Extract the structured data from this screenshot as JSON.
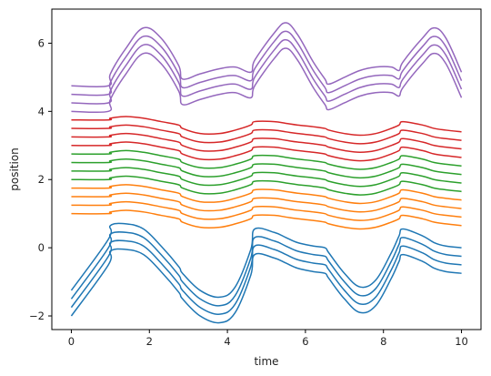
{
  "chart_data": {
    "type": "line",
    "title": "",
    "xlabel": "time",
    "ylabel": "position",
    "xlim": [
      -0.5,
      10.5
    ],
    "ylim": [
      -2.4,
      7.0
    ],
    "xticks": [
      0,
      2,
      4,
      6,
      8,
      10
    ],
    "xtick_labels": [
      "0",
      "2",
      "4",
      "6",
      "8",
      "10"
    ],
    "yticks": [
      -2,
      0,
      2,
      4,
      6
    ],
    "ytick_labels": [
      "−2",
      "0",
      "2",
      "4",
      "6"
    ],
    "grid": false,
    "legend": "none",
    "colors": {
      "blue": "#1f77b4",
      "orange": "#ff7f0e",
      "green": "#2ca02c",
      "red": "#d62728",
      "purple": "#9467bd",
      "axis": "#000000",
      "text": "#222222"
    },
    "x": [
      0,
      0.95,
      1.0,
      1.4,
      1.85,
      2.3,
      2.75,
      2.85,
      3.3,
      3.8,
      4.2,
      4.6,
      4.7,
      5.2,
      5.5,
      5.8,
      6.2,
      6.5,
      6.6,
      7.0,
      7.4,
      7.8,
      8.2,
      8.4,
      8.5,
      9.0,
      9.3,
      9.6,
      10.0
    ],
    "series": [
      {
        "group": "blue",
        "values": [
          -2.0,
          -0.5,
          -0.1,
          -0.05,
          -0.2,
          -0.7,
          -1.3,
          -1.5,
          -2.0,
          -2.2,
          -1.9,
          -0.8,
          -0.2,
          -0.3,
          -0.45,
          -0.6,
          -0.7,
          -0.75,
          -0.9,
          -1.5,
          -1.9,
          -1.7,
          -0.9,
          -0.4,
          -0.2,
          -0.4,
          -0.6,
          -0.7,
          -0.75
        ]
      },
      {
        "group": "blue",
        "values": [
          -1.75,
          -0.25,
          0.15,
          0.2,
          0.05,
          -0.45,
          -1.05,
          -1.25,
          -1.75,
          -1.95,
          -1.65,
          -0.55,
          0.05,
          -0.05,
          -0.2,
          -0.35,
          -0.45,
          -0.5,
          -0.65,
          -1.25,
          -1.65,
          -1.45,
          -0.65,
          -0.15,
          0.05,
          -0.15,
          -0.35,
          -0.45,
          -0.5
        ]
      },
      {
        "group": "blue",
        "values": [
          -1.5,
          0.0,
          0.4,
          0.45,
          0.3,
          -0.2,
          -0.8,
          -1.0,
          -1.5,
          -1.7,
          -1.4,
          -0.3,
          0.3,
          0.2,
          0.05,
          -0.1,
          -0.2,
          -0.25,
          -0.4,
          -1.0,
          -1.4,
          -1.2,
          -0.4,
          0.1,
          0.3,
          0.1,
          -0.1,
          -0.2,
          -0.25
        ]
      },
      {
        "group": "blue",
        "values": [
          -1.25,
          0.25,
          0.65,
          0.7,
          0.55,
          0.05,
          -0.55,
          -0.75,
          -1.25,
          -1.45,
          -1.15,
          -0.05,
          0.55,
          0.45,
          0.3,
          0.15,
          0.05,
          0.0,
          -0.15,
          -0.75,
          -1.15,
          -0.95,
          -0.15,
          0.35,
          0.55,
          0.35,
          0.15,
          0.05,
          0.0
        ]
      },
      {
        "group": "orange",
        "values": [
          1.0,
          1.0,
          1.05,
          1.1,
          1.05,
          0.95,
          0.85,
          0.75,
          0.6,
          0.6,
          0.7,
          0.85,
          0.95,
          0.95,
          0.9,
          0.85,
          0.8,
          0.75,
          0.7,
          0.6,
          0.55,
          0.6,
          0.75,
          0.85,
          0.95,
          0.85,
          0.75,
          0.7,
          0.65
        ]
      },
      {
        "group": "orange",
        "values": [
          1.25,
          1.25,
          1.3,
          1.35,
          1.3,
          1.2,
          1.1,
          1.0,
          0.85,
          0.85,
          0.95,
          1.1,
          1.2,
          1.2,
          1.15,
          1.1,
          1.05,
          1.0,
          0.95,
          0.85,
          0.8,
          0.85,
          1.0,
          1.1,
          1.2,
          1.1,
          1.0,
          0.95,
          0.9
        ]
      },
      {
        "group": "orange",
        "values": [
          1.5,
          1.5,
          1.55,
          1.6,
          1.55,
          1.45,
          1.35,
          1.25,
          1.1,
          1.1,
          1.2,
          1.35,
          1.45,
          1.45,
          1.4,
          1.35,
          1.3,
          1.25,
          1.2,
          1.1,
          1.05,
          1.1,
          1.25,
          1.35,
          1.45,
          1.35,
          1.25,
          1.2,
          1.15
        ]
      },
      {
        "group": "orange",
        "values": [
          1.75,
          1.75,
          1.8,
          1.85,
          1.8,
          1.7,
          1.6,
          1.5,
          1.35,
          1.35,
          1.45,
          1.6,
          1.7,
          1.7,
          1.65,
          1.6,
          1.55,
          1.5,
          1.45,
          1.35,
          1.3,
          1.35,
          1.5,
          1.6,
          1.7,
          1.6,
          1.5,
          1.45,
          1.4
        ]
      },
      {
        "group": "green",
        "values": [
          2.0,
          2.0,
          2.05,
          2.1,
          2.05,
          1.95,
          1.85,
          1.75,
          1.6,
          1.6,
          1.7,
          1.85,
          1.95,
          1.95,
          1.9,
          1.85,
          1.8,
          1.75,
          1.7,
          1.6,
          1.55,
          1.6,
          1.75,
          1.85,
          1.95,
          1.85,
          1.75,
          1.7,
          1.65
        ]
      },
      {
        "group": "green",
        "values": [
          2.25,
          2.25,
          2.3,
          2.35,
          2.3,
          2.2,
          2.1,
          2.0,
          1.85,
          1.85,
          1.95,
          2.1,
          2.2,
          2.2,
          2.15,
          2.1,
          2.05,
          2.0,
          1.95,
          1.85,
          1.8,
          1.85,
          2.0,
          2.1,
          2.2,
          2.1,
          2.0,
          1.95,
          1.9
        ]
      },
      {
        "group": "green",
        "values": [
          2.5,
          2.5,
          2.55,
          2.6,
          2.55,
          2.45,
          2.35,
          2.25,
          2.1,
          2.1,
          2.2,
          2.35,
          2.45,
          2.45,
          2.4,
          2.35,
          2.3,
          2.25,
          2.2,
          2.1,
          2.05,
          2.1,
          2.25,
          2.35,
          2.45,
          2.35,
          2.25,
          2.2,
          2.15
        ]
      },
      {
        "group": "green",
        "values": [
          2.75,
          2.75,
          2.8,
          2.85,
          2.8,
          2.7,
          2.6,
          2.5,
          2.35,
          2.35,
          2.45,
          2.6,
          2.7,
          2.7,
          2.65,
          2.6,
          2.55,
          2.5,
          2.45,
          2.35,
          2.3,
          2.35,
          2.5,
          2.6,
          2.7,
          2.6,
          2.5,
          2.45,
          2.4
        ]
      },
      {
        "group": "red",
        "values": [
          3.0,
          3.0,
          3.05,
          3.1,
          3.05,
          2.95,
          2.85,
          2.75,
          2.6,
          2.6,
          2.7,
          2.85,
          2.95,
          2.95,
          2.9,
          2.85,
          2.8,
          2.75,
          2.7,
          2.6,
          2.55,
          2.6,
          2.75,
          2.85,
          2.95,
          2.85,
          2.75,
          2.7,
          2.65
        ]
      },
      {
        "group": "red",
        "values": [
          3.25,
          3.25,
          3.3,
          3.35,
          3.3,
          3.2,
          3.1,
          3.0,
          2.85,
          2.85,
          2.95,
          3.1,
          3.2,
          3.2,
          3.15,
          3.1,
          3.05,
          3.0,
          2.95,
          2.85,
          2.8,
          2.85,
          3.0,
          3.1,
          3.2,
          3.1,
          3.0,
          2.95,
          2.9
        ]
      },
      {
        "group": "red",
        "values": [
          3.5,
          3.5,
          3.55,
          3.6,
          3.55,
          3.45,
          3.35,
          3.25,
          3.1,
          3.1,
          3.2,
          3.35,
          3.45,
          3.45,
          3.4,
          3.35,
          3.3,
          3.25,
          3.2,
          3.1,
          3.05,
          3.1,
          3.25,
          3.35,
          3.45,
          3.35,
          3.25,
          3.2,
          3.15
        ]
      },
      {
        "group": "red",
        "values": [
          3.75,
          3.75,
          3.8,
          3.85,
          3.8,
          3.7,
          3.6,
          3.5,
          3.35,
          3.35,
          3.45,
          3.6,
          3.7,
          3.7,
          3.65,
          3.6,
          3.55,
          3.5,
          3.45,
          3.35,
          3.3,
          3.35,
          3.5,
          3.6,
          3.7,
          3.6,
          3.5,
          3.45,
          3.4
        ]
      },
      {
        "group": "purple",
        "values": [
          4.0,
          4.0,
          4.35,
          5.1,
          5.7,
          5.4,
          4.6,
          4.2,
          4.35,
          4.5,
          4.55,
          4.4,
          4.75,
          5.55,
          5.85,
          5.5,
          4.7,
          4.2,
          4.05,
          4.25,
          4.45,
          4.55,
          4.55,
          4.45,
          4.7,
          5.4,
          5.7,
          5.4,
          4.4
        ]
      },
      {
        "group": "purple",
        "values": [
          4.25,
          4.25,
          4.6,
          5.35,
          5.95,
          5.65,
          4.85,
          4.45,
          4.6,
          4.75,
          4.8,
          4.65,
          5.0,
          5.8,
          6.1,
          5.75,
          4.95,
          4.45,
          4.3,
          4.5,
          4.7,
          4.8,
          4.8,
          4.7,
          4.95,
          5.65,
          5.95,
          5.65,
          4.65
        ]
      },
      {
        "group": "purple",
        "values": [
          4.5,
          4.5,
          4.85,
          5.6,
          6.2,
          5.9,
          5.1,
          4.7,
          4.85,
          5.0,
          5.05,
          4.9,
          5.25,
          6.05,
          6.35,
          6.0,
          5.2,
          4.7,
          4.55,
          4.75,
          4.95,
          5.05,
          5.05,
          4.95,
          5.2,
          5.9,
          6.2,
          5.9,
          4.9
        ]
      },
      {
        "group": "purple",
        "values": [
          4.75,
          4.75,
          5.1,
          5.85,
          6.45,
          6.15,
          5.35,
          4.95,
          5.1,
          5.25,
          5.3,
          5.15,
          5.5,
          6.3,
          6.6,
          6.25,
          5.45,
          4.95,
          4.8,
          5.0,
          5.2,
          5.3,
          5.3,
          5.2,
          5.45,
          6.15,
          6.45,
          6.15,
          5.15
        ]
      }
    ]
  }
}
